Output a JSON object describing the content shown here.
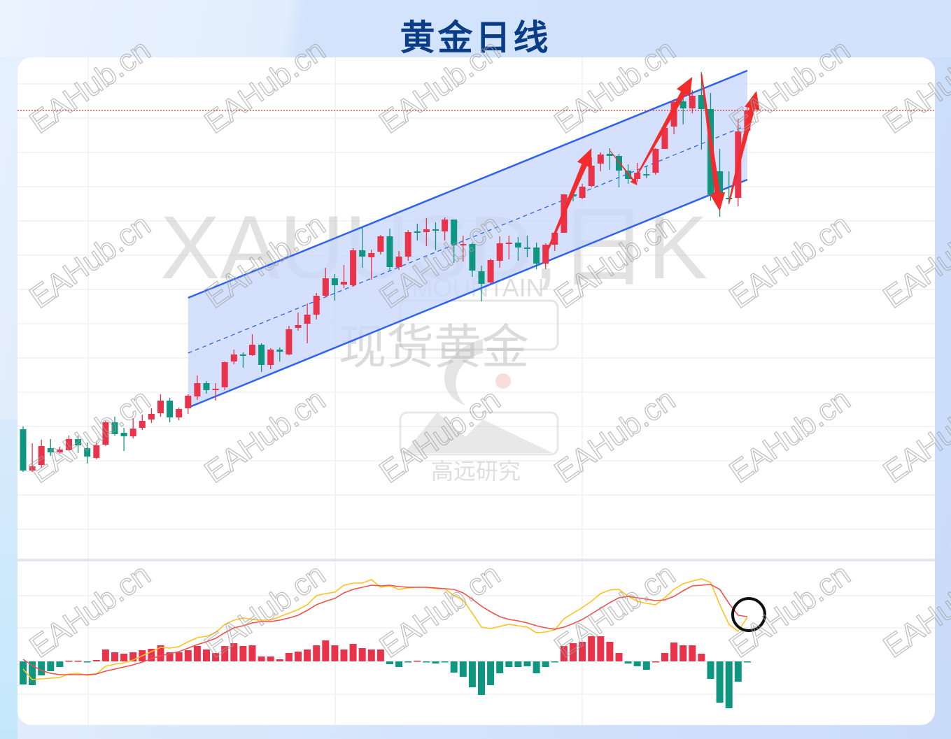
{
  "title": "黄金日线",
  "watermarks": {
    "site": "EAHub.cn",
    "symbol": "XAUUSD,日K",
    "brand_en": "MOUNTAIN",
    "brand_cn": "现货黄金",
    "brand_sub": "高远研究"
  },
  "colors": {
    "up": "#e8334a",
    "down": "#0e9680",
    "channel_line": "#2f62f0",
    "channel_fill": "#c9d8fb",
    "dif_line": "#ffc21f",
    "dea_line": "#f0524f",
    "arrows": "#f22c2c",
    "title": "#0a3d86"
  },
  "chart_data": [
    {
      "type": "candlestick",
      "title": "",
      "xlabel": "",
      "ylabel": "",
      "grid": true,
      "axis_labels_shown": false,
      "ohlc_note_units": "relative price units (no axis printed)",
      "ylim": [
        80,
        800
      ],
      "candles": [
        [
          186,
          190,
          125,
          127
        ],
        [
          127,
          166,
          125,
          133
        ],
        [
          135,
          171,
          131,
          162
        ],
        [
          159,
          172,
          148,
          153
        ],
        [
          153,
          161,
          151,
          157
        ],
        [
          156,
          177,
          155,
          172
        ],
        [
          172,
          177,
          152,
          163
        ],
        [
          159,
          167,
          137,
          147
        ],
        [
          145,
          167,
          143,
          163
        ],
        [
          164,
          198,
          162,
          196
        ],
        [
          196,
          204,
          177,
          179
        ],
        [
          181,
          188,
          155,
          176
        ],
        [
          176,
          202,
          173,
          187
        ],
        [
          188,
          207,
          185,
          198
        ],
        [
          200,
          216,
          195,
          208
        ],
        [
          209,
          236,
          204,
          227
        ],
        [
          227,
          231,
          196,
          203
        ],
        [
          203,
          217,
          199,
          215
        ],
        [
          216,
          236,
          208,
          234
        ],
        [
          233,
          263,
          228,
          252
        ],
        [
          252,
          255,
          237,
          242
        ],
        [
          242,
          252,
          227,
          244
        ],
        [
          246,
          283,
          242,
          282
        ],
        [
          283,
          300,
          279,
          293
        ],
        [
          293,
          296,
          274,
          291
        ],
        [
          292,
          322,
          291,
          307
        ],
        [
          307,
          309,
          268,
          278
        ],
        [
          278,
          302,
          272,
          300
        ],
        [
          300,
          303,
          283,
          297
        ],
        [
          293,
          334,
          292,
          329
        ],
        [
          331,
          353,
          327,
          335
        ],
        [
          337,
          366,
          309,
          350
        ],
        [
          350,
          381,
          343,
          377
        ],
        [
          377,
          417,
          375,
          402
        ],
        [
          402,
          408,
          370,
          392
        ],
        [
          393,
          421,
          388,
          397
        ],
        [
          392,
          445,
          390,
          442
        ],
        [
          442,
          476,
          417,
          433
        ],
        [
          432,
          443,
          400,
          438
        ],
        [
          440,
          464,
          436,
          462
        ],
        [
          462,
          473,
          413,
          418
        ],
        [
          418,
          441,
          414,
          433
        ],
        [
          433,
          471,
          427,
          468
        ],
        [
          469,
          480,
          456,
          467
        ],
        [
          468,
          488,
          448,
          472
        ],
        [
          472,
          482,
          442,
          470
        ],
        [
          469,
          489,
          456,
          486
        ],
        [
          486,
          486,
          424,
          450
        ],
        [
          449,
          463,
          426,
          451
        ],
        [
          451,
          453,
          404,
          413
        ],
        [
          412,
          420,
          369,
          394
        ],
        [
          396,
          430,
          394,
          428
        ],
        [
          427,
          462,
          417,
          452
        ],
        [
          451,
          463,
          429,
          453
        ],
        [
          453,
          461,
          427,
          446
        ],
        [
          446,
          463,
          432,
          445
        ],
        [
          446,
          453,
          415,
          423
        ],
        [
          423,
          452,
          415,
          450
        ],
        [
          450,
          467,
          441,
          467
        ],
        [
          467,
          522,
          467,
          522
        ],
        [
          522,
          525,
          512,
          519
        ],
        [
          517,
          537,
          515,
          533
        ],
        [
          534,
          575,
          532,
          563
        ],
        [
          566,
          582,
          555,
          579
        ],
        [
          580,
          588,
          557,
          577
        ],
        [
          577,
          580,
          532,
          556
        ],
        [
          556,
          565,
          537,
          544
        ],
        [
          544,
          567,
          540,
          553
        ],
        [
          551,
          563,
          545,
          549
        ],
        [
          553,
          588,
          550,
          587
        ],
        [
          587,
          620,
          587,
          617
        ],
        [
          619,
          658,
          608,
          654
        ],
        [
          655,
          660,
          622,
          645
        ],
        [
          645,
          671,
          638,
          663
        ],
        [
          664,
          697,
          586,
          644
        ],
        [
          644,
          667,
          513,
          522
        ],
        [
          555,
          587,
          490,
          522
        ],
        [
          517,
          555,
          508,
          515
        ],
        [
          517,
          630,
          505,
          612
        ],
        [
          613,
          652,
          610,
          642
        ]
      ],
      "candle_fields": [
        "open",
        "high",
        "low",
        "close"
      ],
      "channel": {
        "upper": [
          [
            19,
            374
          ],
          [
            80,
            699
          ]
        ],
        "lower": [
          [
            19,
            217
          ],
          [
            80,
            543
          ]
        ],
        "middle_dashed": [
          [
            19,
            295
          ],
          [
            80,
            621
          ]
        ]
      },
      "horizontal_dotted_level": 642,
      "arrows": [
        {
          "from": [
            58,
            435
          ],
          "to": [
            63,
            588
          ]
        },
        {
          "from": [
            65,
            585
          ],
          "to": [
            68,
            535
          ]
        },
        {
          "from": [
            68,
            550
          ],
          "to": [
            74,
            690
          ]
        },
        {
          "from": [
            75,
            694
          ],
          "to": [
            77,
            498
          ]
        },
        {
          "from": [
            78,
            510
          ],
          "to": [
            81,
            670
          ]
        }
      ]
    },
    {
      "type": "macd",
      "title": "",
      "histogram": [
        -33,
        -34,
        -20,
        -14,
        -8,
        1,
        1,
        -1,
        2,
        17,
        13,
        11,
        13,
        16,
        18,
        23,
        13,
        13,
        16,
        22,
        17,
        12,
        22,
        26,
        22,
        23,
        7,
        7,
        3,
        12,
        14,
        17,
        23,
        30,
        23,
        17,
        25,
        19,
        17,
        17,
        -4,
        -8,
        -1,
        1,
        -1,
        -3,
        -1,
        -16,
        -22,
        -37,
        -48,
        -34,
        -17,
        -8,
        -8,
        -7,
        -17,
        -8,
        -1,
        22,
        26,
        28,
        36,
        36,
        28,
        12,
        -3,
        -7,
        -12,
        0,
        12,
        27,
        23,
        23,
        11,
        -25,
        -59,
        -67,
        -29,
        -1
      ],
      "dif": [
        -11,
        -26,
        -25,
        -24,
        -23,
        -18,
        -17,
        -20,
        -18,
        -7,
        -4,
        -2,
        2,
        8,
        14,
        20,
        19,
        21,
        28,
        34,
        36,
        41,
        53,
        59,
        62,
        60,
        59,
        59,
        64,
        69,
        74,
        81,
        94,
        97,
        99,
        109,
        112,
        112,
        117,
        106,
        108,
        103,
        105,
        106,
        106,
        104,
        104,
        94,
        88,
        69,
        49,
        47,
        50,
        53,
        51,
        49,
        41,
        42,
        45,
        61,
        69,
        77,
        86,
        97,
        102,
        103,
        93,
        86,
        83,
        81,
        91,
        103,
        111,
        115,
        118,
        113,
        81,
        53,
        43,
        63
      ],
      "dea": [
        3,
        -6,
        -13,
        -17,
        -19,
        -19,
        -19,
        -19,
        -18,
        -14,
        -11,
        -8,
        -5,
        -1,
        4,
        8,
        11,
        14,
        19,
        24,
        28,
        33,
        41,
        48,
        51,
        55,
        57,
        57,
        59,
        62,
        66,
        73,
        81,
        86,
        90,
        98,
        103,
        106,
        109,
        108,
        109,
        107,
        106,
        106,
        106,
        105,
        104,
        103,
        98,
        89,
        79,
        71,
        64,
        60,
        58,
        55,
        51,
        48,
        46,
        49,
        54,
        60,
        68,
        76,
        84,
        91,
        93,
        91,
        89,
        87,
        88,
        93,
        101,
        108,
        109,
        110,
        103,
        83,
        66,
        64
      ],
      "annotation": "circle around last values"
    }
  ]
}
